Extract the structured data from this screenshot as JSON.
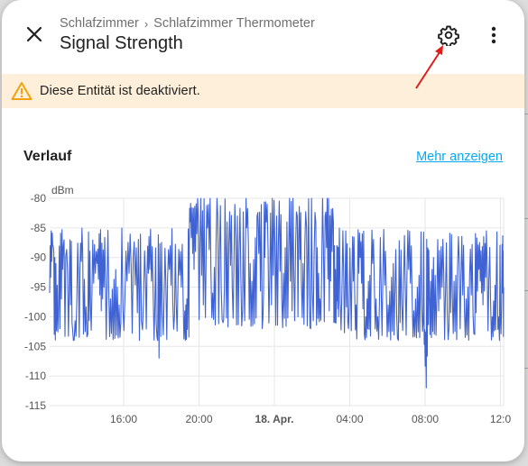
{
  "header": {
    "breadcrumb": [
      "Schlafzimmer",
      "Schlafzimmer Thermometer"
    ],
    "breadcrumb_separator": "›",
    "title": "Signal Strength"
  },
  "icons": {
    "close": "close-icon",
    "settings": "gear-icon",
    "more": "more-vertical-icon",
    "warning": "warning-triangle-icon"
  },
  "warning": {
    "text": "Diese Entität ist deaktiviert."
  },
  "history": {
    "title": "Verlauf",
    "link": "Mehr anzeigen"
  },
  "colors": {
    "accent": "#03a9f4",
    "series": "#3f63d4",
    "warning_bg": "#fdefd9",
    "warning_icon": "#f2a10f",
    "annotation_arrow": "#e01b1b"
  },
  "chart_data": {
    "type": "line",
    "ylabel": "dBm",
    "ylim": [
      -115,
      -80
    ],
    "yticks": [
      -80,
      -85,
      -90,
      -95,
      -100,
      -105,
      -110,
      -115
    ],
    "xticks": [
      {
        "label": "16:00",
        "bold": false
      },
      {
        "label": "20:00",
        "bold": false
      },
      {
        "label": "18. Apr.",
        "bold": true
      },
      {
        "label": "04:00",
        "bold": false
      },
      {
        "label": "08:00",
        "bold": false
      },
      {
        "label": "12:0",
        "bold": false
      }
    ],
    "grid": true,
    "series": [
      {
        "points": [
          [
            0,
            -96
          ],
          [
            0.3,
            -88
          ],
          [
            0.6,
            -91
          ],
          [
            1,
            -102
          ],
          [
            1.4,
            -87
          ],
          [
            1.9,
            -95
          ],
          [
            2.3,
            -104
          ],
          [
            2.8,
            -94
          ],
          [
            3.2,
            -89
          ],
          [
            3.7,
            -103
          ],
          [
            4.1,
            -96
          ],
          [
            4.6,
            -91
          ],
          [
            5,
            -99
          ],
          [
            5.4,
            -93
          ],
          [
            5.9,
            -97
          ],
          [
            6.4,
            -92
          ],
          [
            6.9,
            -101
          ],
          [
            7.5,
            -94
          ],
          [
            8.1,
            -90
          ],
          [
            8.7,
            -104
          ],
          [
            9.3,
            -94
          ],
          [
            9.7,
            -92
          ],
          [
            10.2,
            -98
          ],
          [
            10.6,
            -107
          ],
          [
            11.1,
            -96
          ],
          [
            11.6,
            -92
          ],
          [
            12.1,
            -100
          ],
          [
            12.6,
            -93
          ],
          [
            13.1,
            -99
          ],
          [
            13.4,
            -96
          ],
          [
            13.6,
            -84
          ],
          [
            14,
            -92
          ],
          [
            14.4,
            -83
          ],
          [
            14.9,
            -98
          ],
          [
            15.3,
            -85
          ],
          [
            15.8,
            -96
          ],
          [
            16.3,
            -83
          ],
          [
            16.8,
            -101
          ],
          [
            17.2,
            -84
          ],
          [
            17.7,
            -95
          ],
          [
            18.2,
            -83
          ],
          [
            18.7,
            -99
          ],
          [
            19.1,
            -85
          ],
          [
            19.6,
            -94
          ],
          [
            20.1,
            -83
          ],
          [
            20.6,
            -102
          ],
          [
            21,
            -84
          ],
          [
            21.5,
            -98
          ],
          [
            22,
            -83
          ],
          [
            22.5,
            -97
          ],
          [
            23,
            -84
          ],
          [
            23.5,
            -99
          ],
          [
            24,
            -83
          ],
          [
            24.4,
            -94
          ],
          [
            24.9,
            -85
          ],
          [
            25.3,
            -102
          ],
          [
            25.8,
            -84
          ],
          [
            26.2,
            -97
          ],
          [
            26.7,
            -83
          ],
          [
            27.1,
            -99
          ],
          [
            27.5,
            -84
          ],
          [
            27.8,
            -96
          ],
          [
            28,
            -100
          ],
          [
            28.5,
            -93
          ],
          [
            28.9,
            -101
          ],
          [
            29.3,
            -92
          ],
          [
            29.7,
            -98
          ],
          [
            30.1,
            -90
          ],
          [
            30.5,
            -103
          ],
          [
            30.9,
            -94
          ],
          [
            31.3,
            -91
          ],
          [
            31.8,
            -100
          ],
          [
            32.3,
            -93
          ],
          [
            32.8,
            -98
          ],
          [
            33.3,
            -91
          ],
          [
            33.8,
            -104
          ],
          [
            34.3,
            -95
          ],
          [
            34.8,
            -92
          ],
          [
            35.3,
            -99
          ],
          [
            35.8,
            -93
          ],
          [
            36.2,
            -101
          ],
          [
            36.5,
            -112
          ],
          [
            36.8,
            -96
          ],
          [
            37.2,
            -90
          ],
          [
            37.7,
            -99
          ],
          [
            38.2,
            -93
          ],
          [
            38.7,
            -102
          ],
          [
            39.2,
            -94
          ],
          [
            39.7,
            -91
          ],
          [
            40.2,
            -99
          ],
          [
            40.7,
            -93
          ],
          [
            41.2,
            -103
          ],
          [
            41.6,
            -92
          ],
          [
            42,
            -98
          ],
          [
            42.4,
            -91
          ],
          [
            42.9,
            -100
          ],
          [
            43.3,
            -92
          ],
          [
            43.6,
            -104
          ],
          [
            43.9,
            -96
          ],
          [
            44,
            -95
          ]
        ]
      }
    ],
    "xrange": [
      0,
      44
    ]
  }
}
